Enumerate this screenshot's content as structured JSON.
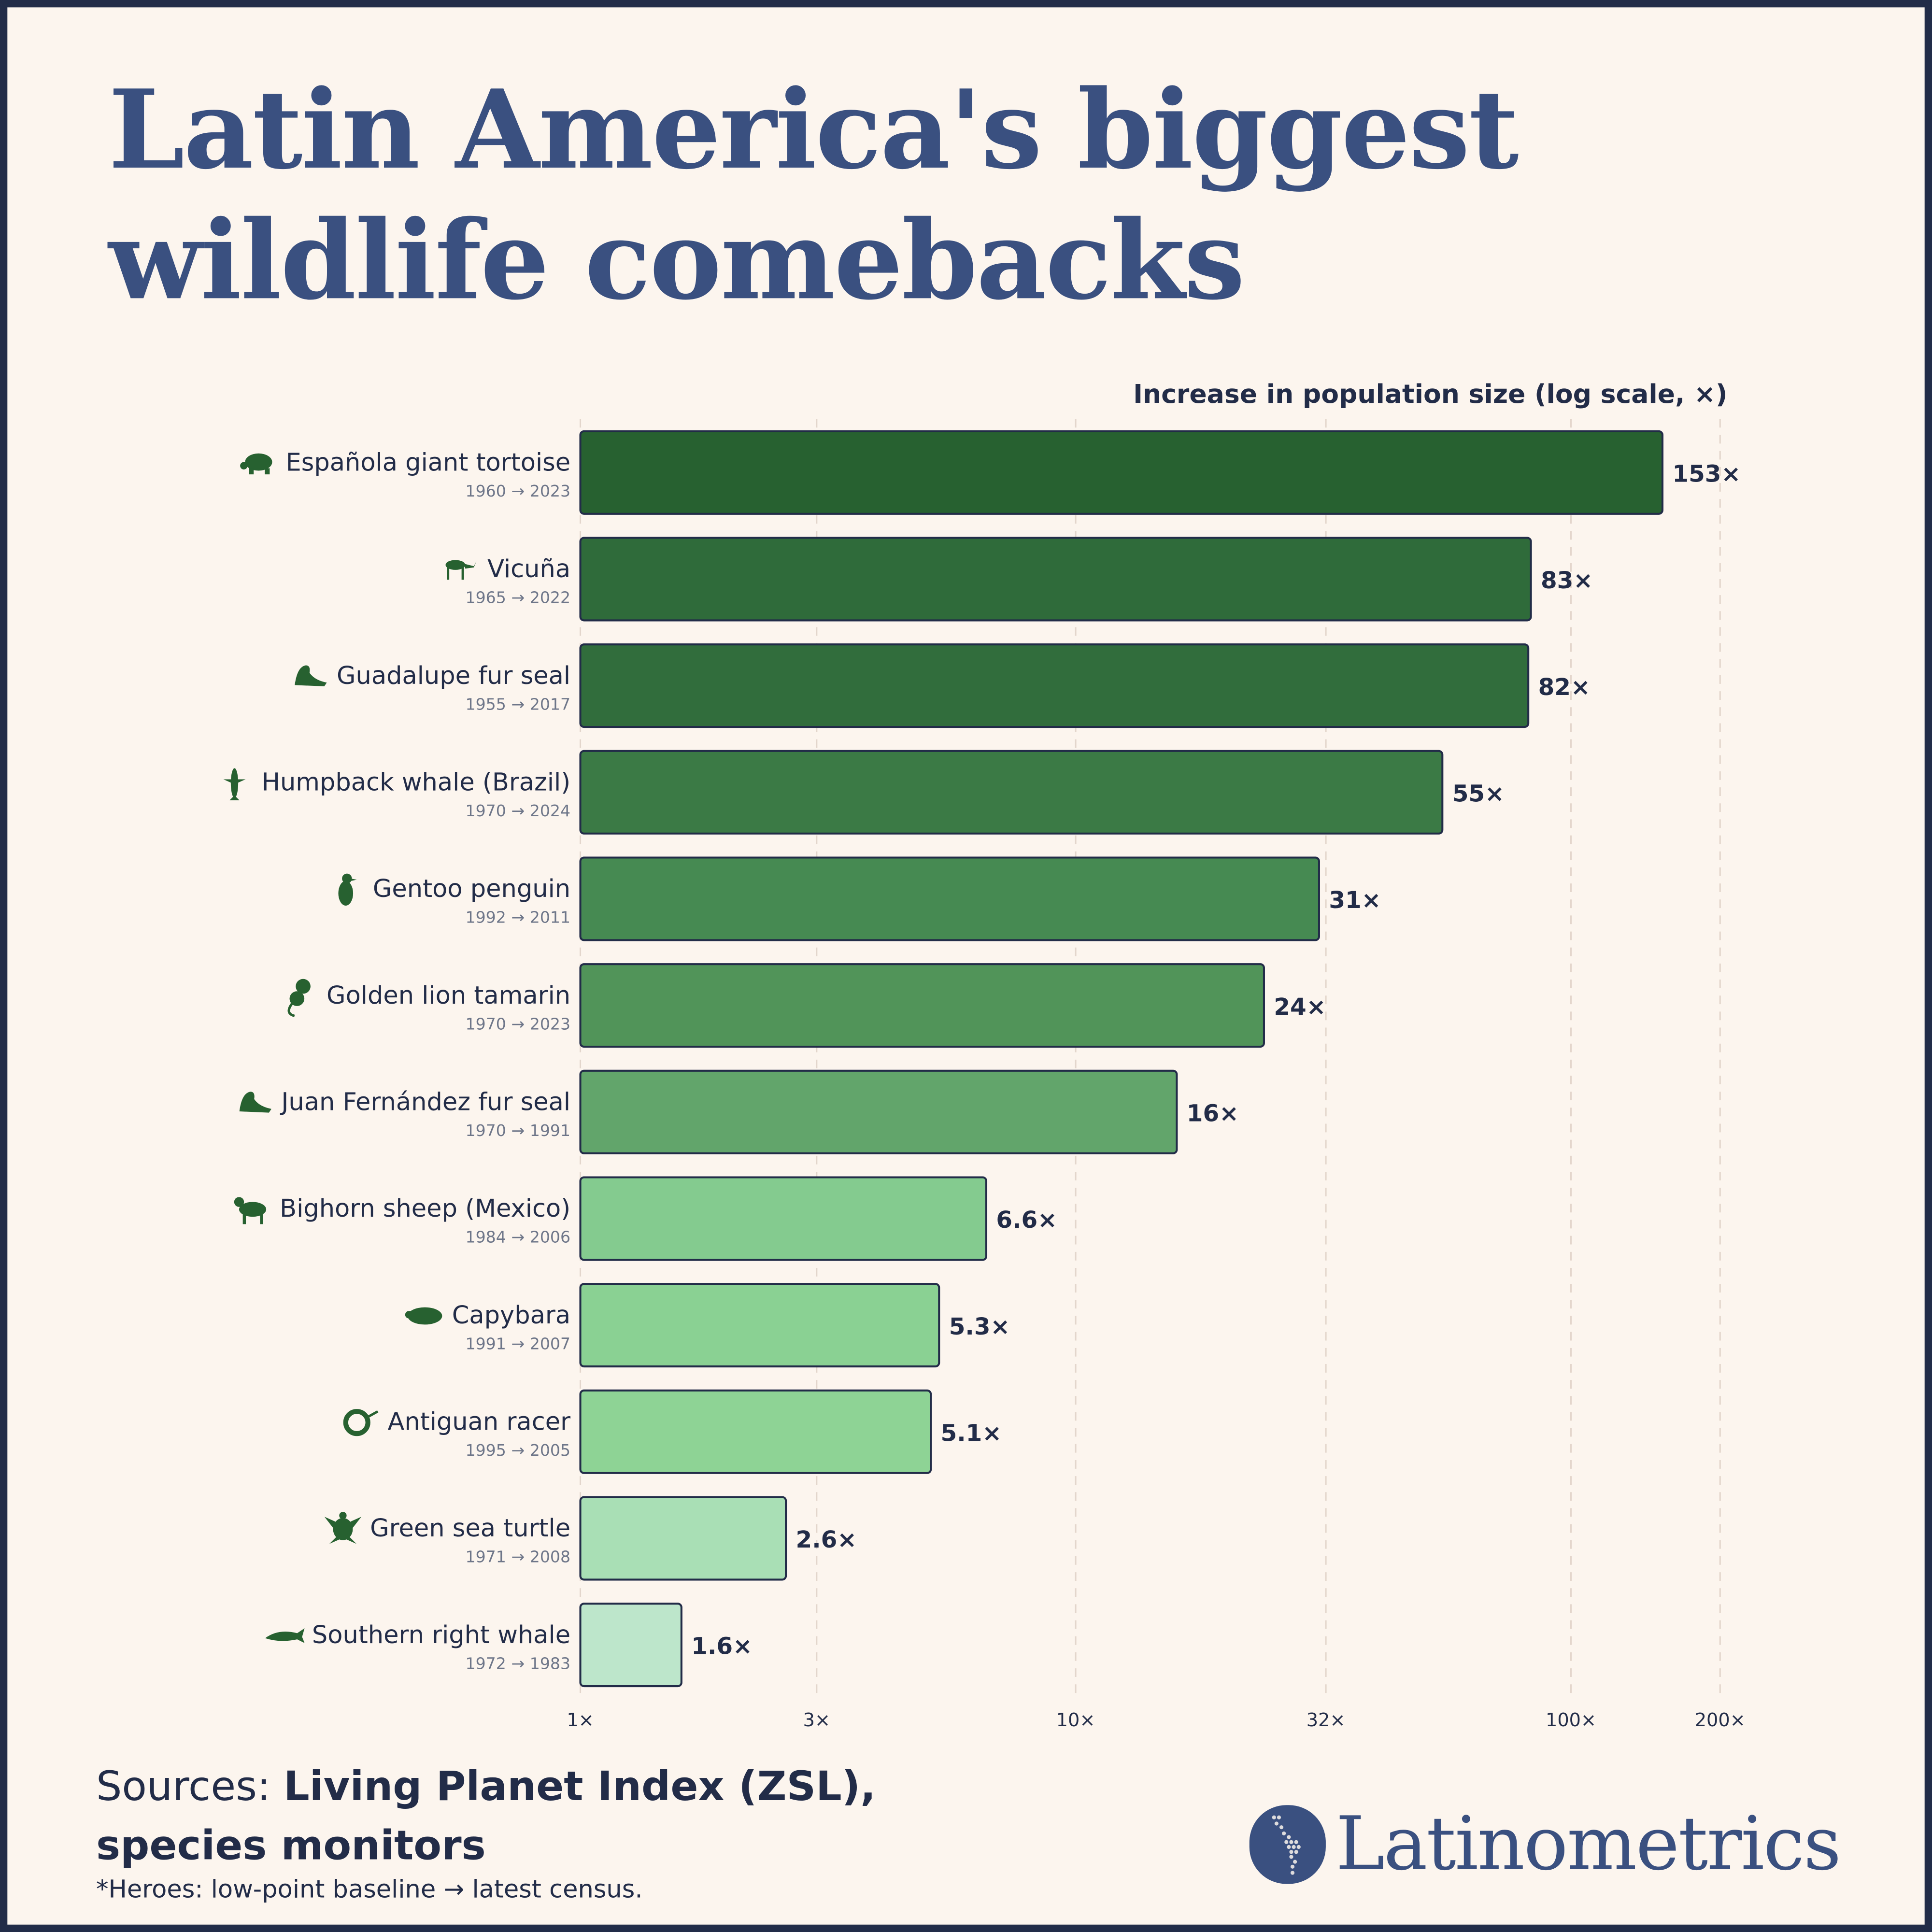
{
  "title_lines": [
    "Latin America's biggest",
    "wildlife comebacks"
  ],
  "chart_data": {
    "type": "bar",
    "orientation": "horizontal",
    "scale": "log",
    "xlabel": "Increase in population size (log scale, ×)",
    "xlim": [
      1,
      200
    ],
    "ticks": [
      1,
      3,
      10,
      32,
      100,
      200
    ],
    "tick_labels": [
      "1×",
      "3×",
      "10×",
      "32×",
      "100×",
      "200×"
    ],
    "grid": "vertical dashed",
    "categories": [
      "Española giant tortoise",
      "Vicuña",
      "Guadalupe fur seal",
      "Humpback whale (Brazil)",
      "Gentoo penguin",
      "Golden lion tamarin",
      "Juan Fernández fur seal",
      "Bighorn sheep (Mexico)",
      "Capybara",
      "Antiguan racer",
      "Green sea turtle",
      "Southern right whale"
    ],
    "periods": [
      "1960 → 2023",
      "1965 → 2022",
      "1955 → 2017",
      "1970 → 2024",
      "1992 → 2011",
      "1970 → 2023",
      "1970 → 1991",
      "1984 → 2006",
      "1991 → 2007",
      "1995 → 2005",
      "1971 → 2008",
      "1972 → 1983"
    ],
    "values": [
      153,
      83,
      82,
      55,
      31,
      24,
      16,
      6.6,
      5.3,
      5.1,
      2.6,
      1.6
    ],
    "value_labels": [
      "153×",
      "83×",
      "82×",
      "55×",
      "31×",
      "24×",
      "16×",
      "6.6×",
      "5.3×",
      "5.1×",
      "2.6×",
      "1.6×"
    ],
    "icons": [
      "tortoise-icon",
      "vicuna-icon",
      "fur-seal-icon",
      "whale-icon",
      "penguin-icon",
      "tamarin-icon",
      "fur-seal-icon",
      "sheep-icon",
      "capybara-icon",
      "snake-icon",
      "sea-turtle-icon",
      "right-whale-icon"
    ],
    "colors": [
      "#276130",
      "#2f6b3a",
      "#316d3c",
      "#3b7a45",
      "#468a52",
      "#519459",
      "#62a56b",
      "#84cb8f",
      "#8ad193",
      "#8ed395",
      "#a9dfb5",
      "#bde6cb"
    ]
  },
  "footer": {
    "sources_prefix": "Sources: ",
    "sources_bold": "Living Planet Index (ZSL), species monitors",
    "note": "*Heroes: low-point baseline → latest census."
  },
  "brand": {
    "name": "Latinometrics",
    "color": "#3a5080"
  }
}
